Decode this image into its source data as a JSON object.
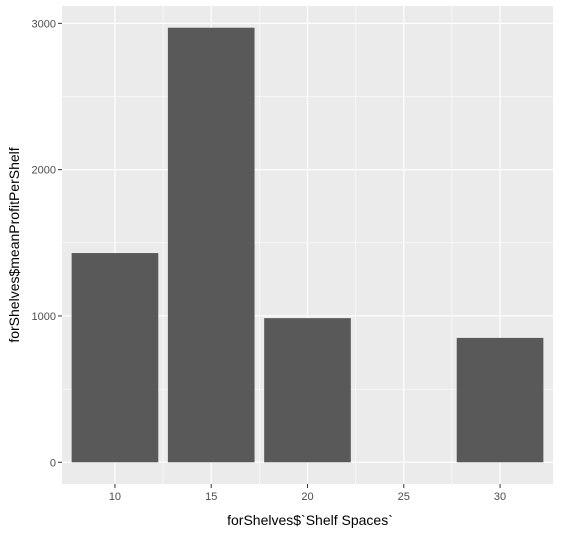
{
  "chart_data": {
    "type": "bar",
    "x": [
      10,
      15,
      20,
      25,
      30
    ],
    "values": [
      1430,
      2970,
      985,
      null,
      850
    ],
    "xlabel": "forShelves$`Shelf Spaces`",
    "ylabel": "forShelves$meanProfitPerShelf",
    "x_ticks": [
      10,
      15,
      20,
      25,
      30
    ],
    "y_ticks": [
      0,
      1000,
      2000,
      3000
    ],
    "xlim": [
      7.25,
      32.75
    ],
    "ylim": [
      -148.5,
      3118.5
    ],
    "bar_width": 4.5,
    "grid": true,
    "panel_background": "#ebebeb",
    "grid_color": "#ffffff",
    "bar_color": "#595959"
  }
}
